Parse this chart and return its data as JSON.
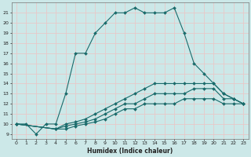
{
  "line1_x": [
    0,
    1,
    2,
    3,
    4,
    5,
    6,
    7,
    8,
    9,
    10,
    11,
    12,
    13,
    14,
    15,
    16,
    17,
    18,
    19,
    20,
    21,
    22,
    23
  ],
  "line1_y": [
    10,
    10,
    9,
    10,
    10,
    13,
    17,
    17,
    19,
    20,
    21,
    21,
    21.5,
    21,
    21,
    21,
    21.5,
    19,
    16,
    15,
    14,
    13,
    12.5,
    12
  ],
  "line2_x": [
    0,
    4,
    5,
    6,
    7,
    8,
    9,
    10,
    11,
    12,
    13,
    14,
    15,
    16,
    17,
    18,
    19,
    20,
    21,
    22,
    23
  ],
  "line2_y": [
    10,
    9.5,
    10,
    10.2,
    10.5,
    11,
    11.5,
    12,
    12.5,
    13,
    13.5,
    14,
    14,
    14,
    14,
    14,
    14,
    14,
    13,
    12.5,
    12
  ],
  "line3_x": [
    0,
    4,
    5,
    6,
    7,
    8,
    9,
    10,
    11,
    12,
    13,
    14,
    15,
    16,
    17,
    18,
    19,
    20,
    21,
    22,
    23
  ],
  "line3_y": [
    10,
    9.5,
    9.8,
    10,
    10.2,
    10.5,
    11,
    11.5,
    12,
    12,
    12.5,
    13,
    13,
    13,
    13,
    13.5,
    13.5,
    13.5,
    12.5,
    12.5,
    12
  ],
  "line4_x": [
    0,
    4,
    5,
    6,
    7,
    8,
    9,
    10,
    11,
    12,
    13,
    14,
    15,
    16,
    17,
    18,
    19,
    20,
    21,
    22,
    23
  ],
  "line4_y": [
    10,
    9.5,
    9.5,
    9.8,
    10,
    10.2,
    10.5,
    11,
    11.5,
    11.5,
    12,
    12,
    12,
    12,
    12.5,
    12.5,
    12.5,
    12.5,
    12,
    12,
    12
  ],
  "bg_color": "#cce8e8",
  "grid_color": "#e8c8c8",
  "line_color": "#1a6b6b",
  "xlabel": "Humidex (Indice chaleur)",
  "xlim": [
    -0.5,
    23.5
  ],
  "ylim": [
    8.5,
    22
  ],
  "yticks": [
    9,
    10,
    11,
    12,
    13,
    14,
    15,
    16,
    17,
    18,
    19,
    20,
    21
  ],
  "xticks": [
    0,
    1,
    2,
    3,
    4,
    5,
    6,
    7,
    8,
    9,
    10,
    11,
    12,
    13,
    14,
    15,
    16,
    17,
    18,
    19,
    20,
    21,
    22,
    23
  ]
}
